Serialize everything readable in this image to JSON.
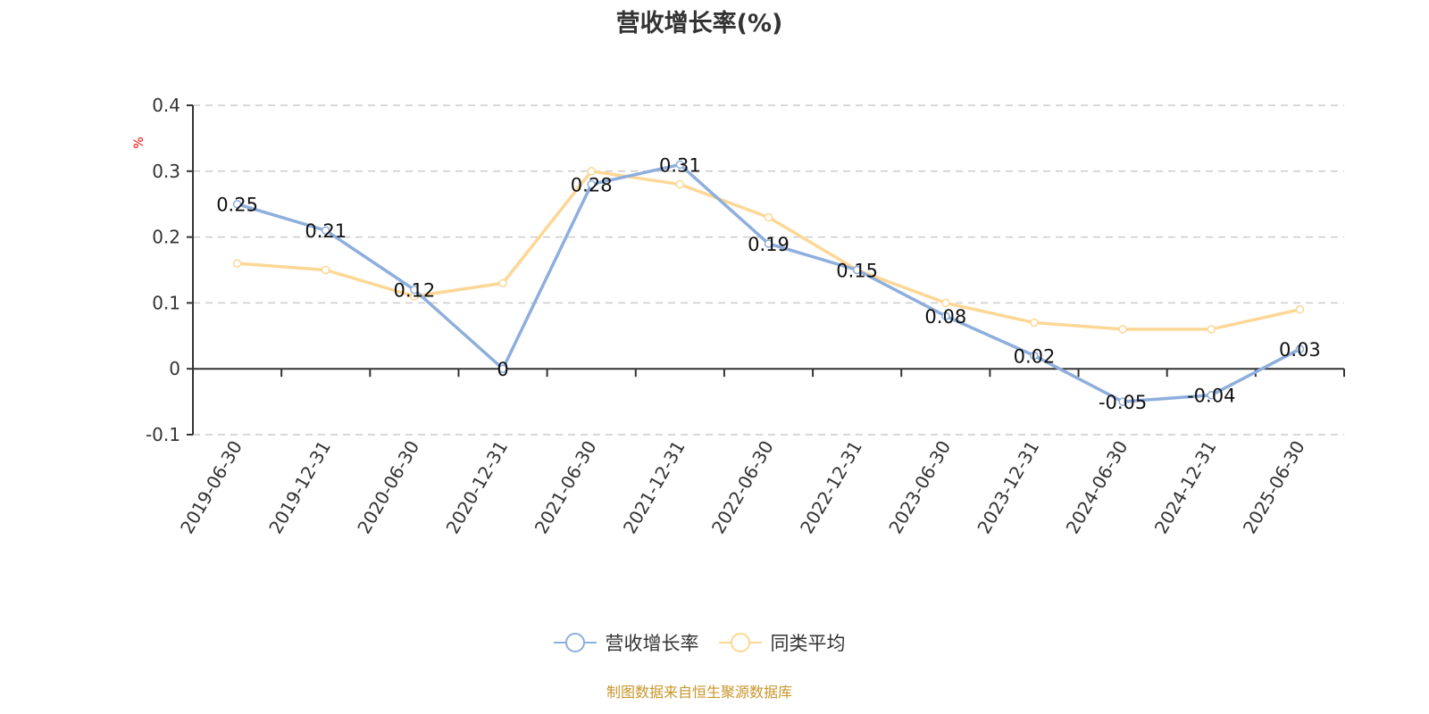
{
  "title": "营收增长率(%)",
  "source_note": "制图数据来自恒生聚源数据库",
  "legend": [
    {
      "label": "营收增长率",
      "color": "#8eaedd"
    },
    {
      "label": "同类平均",
      "color": "#fdd795"
    }
  ],
  "chart_data": {
    "type": "line",
    "title": "营收增长率(%)",
    "xlabel": "",
    "ylabel": "%",
    "ylim": [
      -0.1,
      0.4
    ],
    "yticks": [
      -0.1,
      0,
      0.1,
      0.2,
      0.3,
      0.4
    ],
    "grid": true,
    "legend_position": "bottom",
    "categories": [
      "2019-06-30",
      "2019-12-31",
      "2020-06-30",
      "2020-12-31",
      "2021-06-30",
      "2021-12-31",
      "2022-06-30",
      "2022-12-31",
      "2023-06-30",
      "2023-12-31",
      "2024-06-30",
      "2024-12-31",
      "2025-06-30"
    ],
    "series": [
      {
        "name": "营收增长率",
        "color": "#8eaedd",
        "show_labels": true,
        "values": [
          0.25,
          0.21,
          0.12,
          0,
          0.28,
          0.31,
          0.19,
          0.15,
          0.08,
          0.02,
          -0.05,
          -0.04,
          0.03
        ]
      },
      {
        "name": "同类平均",
        "color": "#fdd795",
        "show_labels": false,
        "values": [
          0.16,
          0.15,
          0.11,
          0.13,
          0.3,
          0.28,
          0.23,
          0.15,
          0.1,
          0.07,
          0.06,
          0.06,
          0.09
        ]
      }
    ],
    "source": "制图数据来自恒生聚源数据库"
  }
}
